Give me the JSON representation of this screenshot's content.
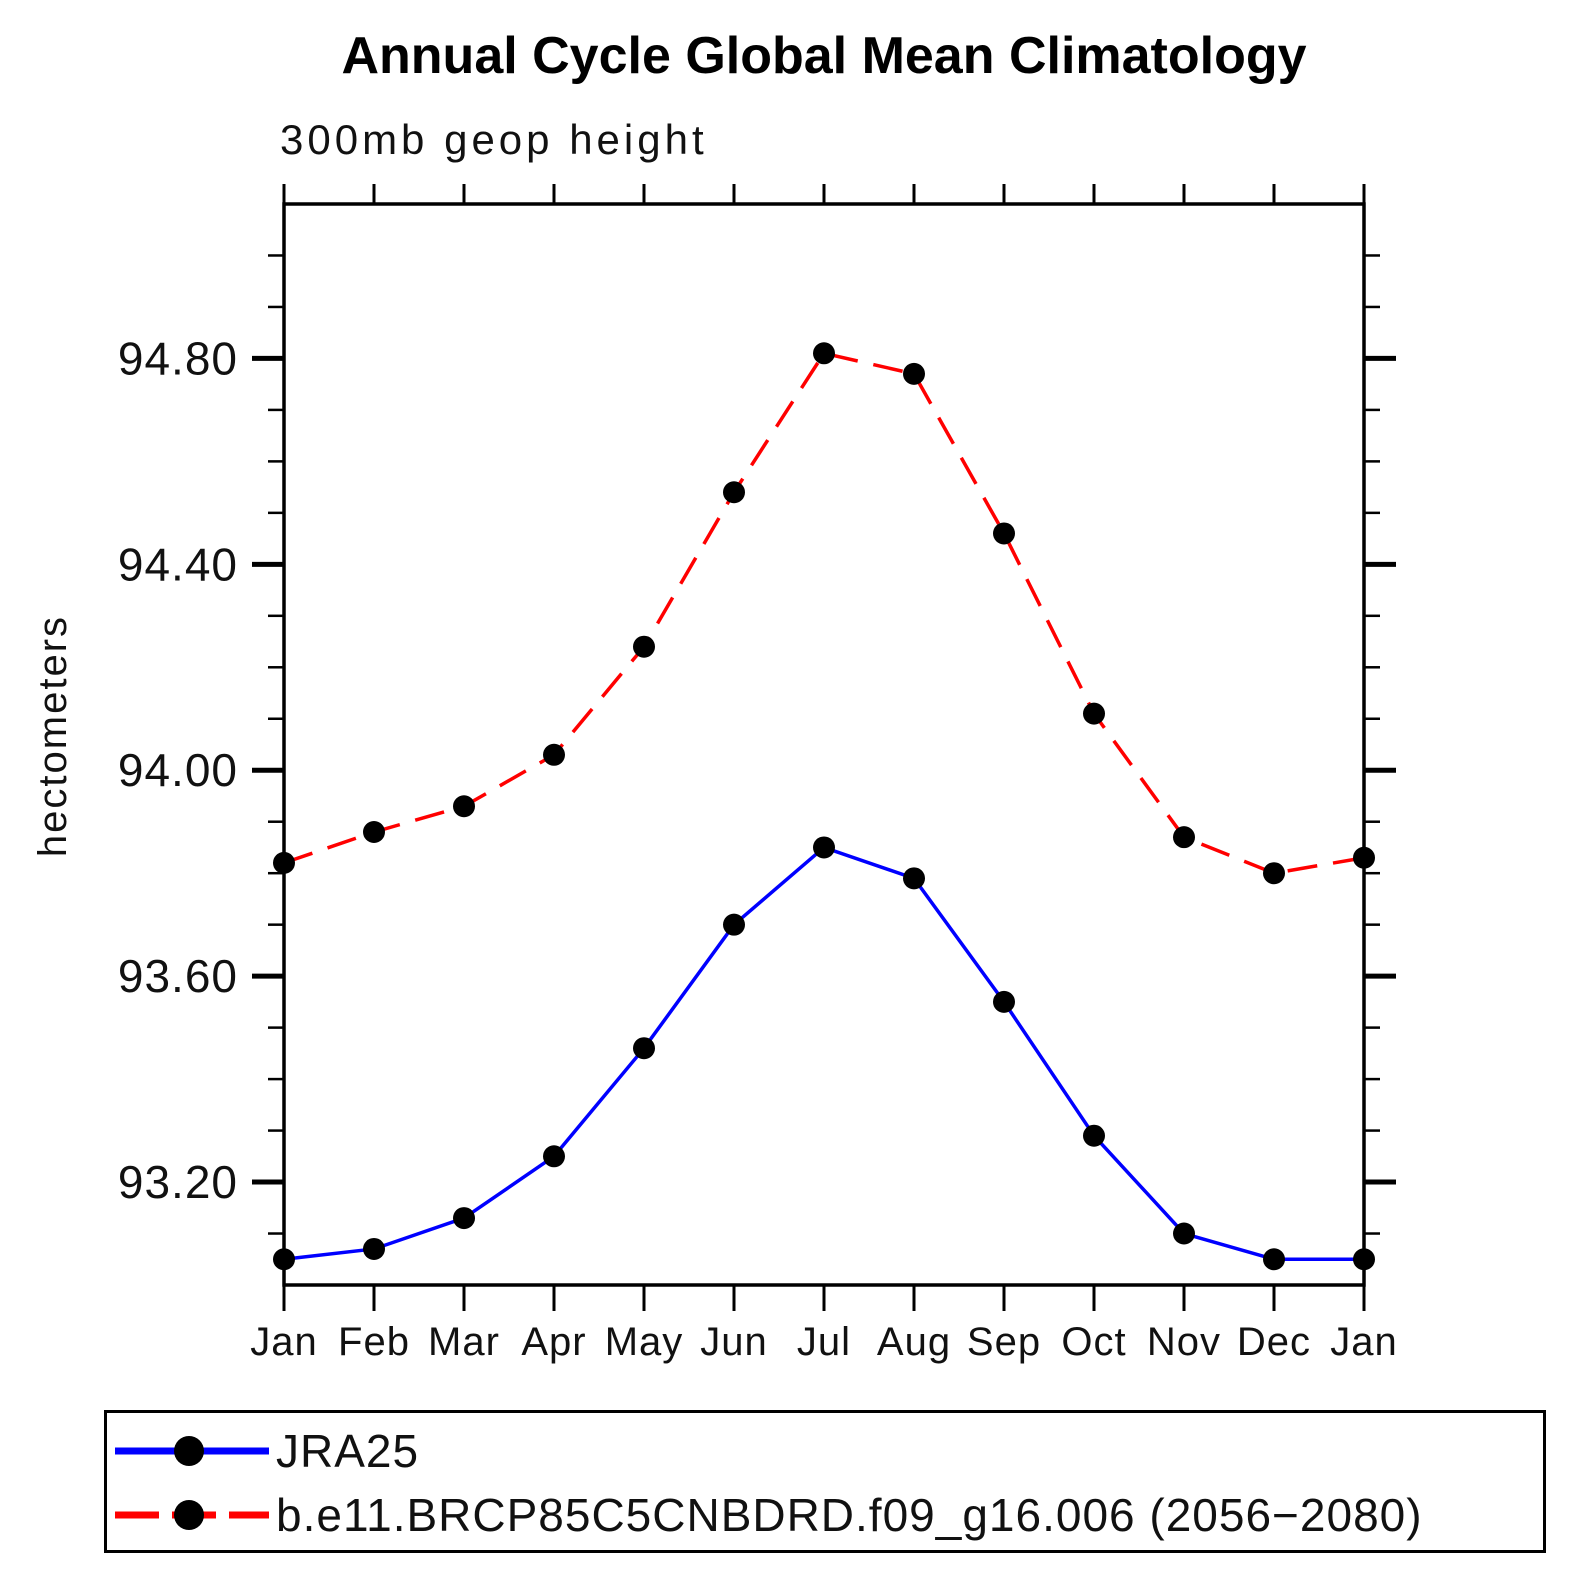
{
  "title": "Annual Cycle Global Mean Climatology",
  "subtitle": "300mb geop height",
  "background_color": "#ffffff",
  "y_axis": {
    "label": "hectometers",
    "tick_labels": [
      "94.80",
      "94.40",
      "94.00",
      "93.60",
      "93.20"
    ],
    "minor_tick_step": 0.1,
    "range": [
      93.0,
      95.1
    ]
  },
  "x_axis": {
    "tick_labels": [
      "Jan",
      "Feb",
      "Mar",
      "Apr",
      "May",
      "Jun",
      "Jul",
      "Aug",
      "Sep",
      "Oct",
      "Nov",
      "Dec",
      "Jan"
    ]
  },
  "legend": {
    "entries": [
      {
        "label": "JRA25",
        "color": "#0000ff",
        "style": "solid",
        "marker_color": "#000000"
      },
      {
        "label": "b.e11.BRCP85C5CNBDRD.f09_g16.006 (2056−2080)",
        "color": "#ff0000",
        "style": "dashed",
        "marker_color": "#000000"
      }
    ]
  },
  "chart_data": {
    "type": "line",
    "title": "Annual Cycle Global Mean Climatology",
    "subtitle": "300mb geop height",
    "xlabel": "",
    "ylabel": "hectometers",
    "categories": [
      "Jan",
      "Feb",
      "Mar",
      "Apr",
      "May",
      "Jun",
      "Jul",
      "Aug",
      "Sep",
      "Oct",
      "Nov",
      "Dec",
      "Jan"
    ],
    "ylim": [
      93.0,
      95.1
    ],
    "ytick_major": [
      93.2,
      93.6,
      94.0,
      94.4,
      94.8
    ],
    "ytick_minor_step": 0.1,
    "grid": false,
    "legend_position": "bottom",
    "series": [
      {
        "name": "JRA25",
        "color": "#0000ff",
        "line_style": "solid",
        "marker": "circle",
        "marker_color": "#000000",
        "values": [
          93.05,
          93.07,
          93.13,
          93.25,
          93.46,
          93.7,
          93.85,
          93.79,
          93.55,
          93.29,
          93.1,
          93.05,
          93.05
        ]
      },
      {
        "name": "b.e11.BRCP85C5CNBDRD.f09_g16.006 (2056−2080)",
        "color": "#ff0000",
        "line_style": "dashed",
        "marker": "circle",
        "marker_color": "#000000",
        "values": [
          93.82,
          93.88,
          93.93,
          94.03,
          94.24,
          94.54,
          94.81,
          94.77,
          94.46,
          94.11,
          93.87,
          93.8,
          93.83
        ]
      }
    ]
  }
}
